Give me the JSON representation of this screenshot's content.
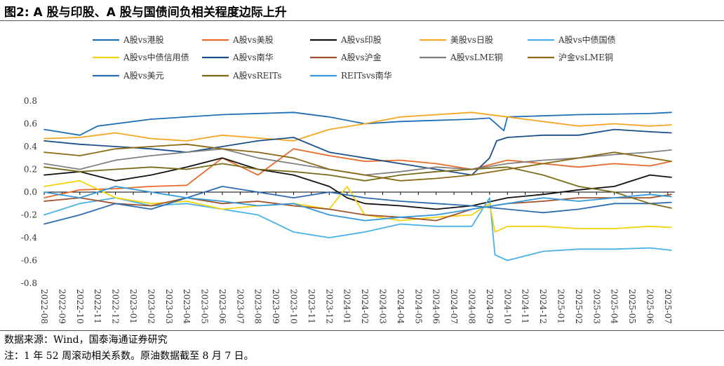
{
  "title": "图2:  A 股与印股、A 股与国债间负相关程度边际上升",
  "source": "数据来源：Wind，国泰海通证券研究",
  "note": "注：1 年 52 周滚动相关系数。原油数据截至 8 月 7 日。",
  "chart_data": {
    "type": "line",
    "title": "",
    "xlabel": "",
    "ylabel": "",
    "ylim": [
      -0.8,
      0.8
    ],
    "yticks": [
      "0.8",
      "0.6",
      "0.4",
      "0.2",
      "0.0",
      "-0.2",
      "-0.4",
      "-0.6",
      "-0.8"
    ],
    "x_labels": [
      "2022-08",
      "2022-09",
      "2022-10",
      "2022-11",
      "2022-12",
      "2023-01",
      "2023-02",
      "2023-03",
      "2023-04",
      "2023-05",
      "2023-06",
      "2023-07",
      "2023-08",
      "2023-09",
      "2023-10",
      "2023-11",
      "2023-12",
      "2024-01",
      "2024-02",
      "2024-03",
      "2024-04",
      "2024-05",
      "2024-06",
      "2024-07",
      "2024-08",
      "2024-09",
      "2024-10",
      "2024-11",
      "2024-12",
      "2025-01",
      "2025-02",
      "2025-03",
      "2025-04",
      "2025-05",
      "2025-06",
      "2025-07"
    ],
    "series": [
      {
        "name": "A股vs港股",
        "color": "#1f6fb4",
        "points": [
          [
            0,
            0.55
          ],
          [
            2,
            0.5
          ],
          [
            3,
            0.58
          ],
          [
            6,
            0.64
          ],
          [
            10,
            0.68
          ],
          [
            14,
            0.7
          ],
          [
            16,
            0.66
          ],
          [
            18,
            0.6
          ],
          [
            20,
            0.62
          ],
          [
            24,
            0.64
          ],
          [
            25,
            0.65
          ],
          [
            25.8,
            0.54
          ],
          [
            26,
            0.66
          ],
          [
            30,
            0.68
          ],
          [
            34,
            0.69
          ],
          [
            35.2,
            0.7
          ]
        ]
      },
      {
        "name": "A股vs美股",
        "color": "#e86a2a",
        "points": [
          [
            0,
            -0.05
          ],
          [
            2,
            0.02
          ],
          [
            4,
            0.03
          ],
          [
            6,
            0.05
          ],
          [
            8,
            0.06
          ],
          [
            10,
            0.3
          ],
          [
            12,
            0.15
          ],
          [
            14,
            0.38
          ],
          [
            16,
            0.32
          ],
          [
            18,
            0.27
          ],
          [
            20,
            0.28
          ],
          [
            22,
            0.25
          ],
          [
            24,
            0.2
          ],
          [
            26,
            0.28
          ],
          [
            28,
            0.25
          ],
          [
            30,
            0.22
          ],
          [
            32,
            0.25
          ],
          [
            34,
            0.23
          ],
          [
            35.2,
            0.27
          ]
        ]
      },
      {
        "name": "A股vs印股",
        "color": "#111111",
        "points": [
          [
            0,
            0.15
          ],
          [
            2,
            0.18
          ],
          [
            4,
            0.1
          ],
          [
            6,
            0.15
          ],
          [
            8,
            0.22
          ],
          [
            10,
            0.3
          ],
          [
            12,
            0.2
          ],
          [
            14,
            0.15
          ],
          [
            16,
            0.05
          ],
          [
            17,
            -0.05
          ],
          [
            18,
            -0.1
          ],
          [
            20,
            -0.12
          ],
          [
            22,
            -0.15
          ],
          [
            24,
            -0.12
          ],
          [
            26,
            -0.05
          ],
          [
            28,
            -0.02
          ],
          [
            30,
            0.02
          ],
          [
            32,
            0.05
          ],
          [
            34,
            0.15
          ],
          [
            35.2,
            0.13
          ]
        ]
      },
      {
        "name": "美股vs日股",
        "color": "#f5a623",
        "points": [
          [
            0,
            0.47
          ],
          [
            2,
            0.48
          ],
          [
            4,
            0.52
          ],
          [
            6,
            0.47
          ],
          [
            8,
            0.45
          ],
          [
            10,
            0.5
          ],
          [
            14,
            0.45
          ],
          [
            16,
            0.55
          ],
          [
            18,
            0.6
          ],
          [
            20,
            0.66
          ],
          [
            22,
            0.68
          ],
          [
            24,
            0.7
          ],
          [
            26,
            0.66
          ],
          [
            28,
            0.62
          ],
          [
            30,
            0.58
          ],
          [
            32,
            0.6
          ],
          [
            34,
            0.58
          ],
          [
            35.2,
            0.59
          ]
        ]
      },
      {
        "name": "A股vs中债国债",
        "color": "#48b2e8",
        "points": [
          [
            0,
            -0.2
          ],
          [
            2,
            -0.1
          ],
          [
            4,
            -0.05
          ],
          [
            6,
            -0.12
          ],
          [
            8,
            -0.1
          ],
          [
            10,
            -0.15
          ],
          [
            12,
            -0.2
          ],
          [
            14,
            -0.35
          ],
          [
            16,
            -0.4
          ],
          [
            18,
            -0.35
          ],
          [
            20,
            -0.28
          ],
          [
            22,
            -0.3
          ],
          [
            24,
            -0.3
          ],
          [
            25,
            -0.05
          ],
          [
            25.3,
            -0.55
          ],
          [
            26,
            -0.6
          ],
          [
            28,
            -0.52
          ],
          [
            30,
            -0.5
          ],
          [
            32,
            -0.5
          ],
          [
            34,
            -0.49
          ],
          [
            35.2,
            -0.51
          ]
        ]
      },
      {
        "name": "A股vs中债信用债",
        "color": "#f4d30c",
        "points": [
          [
            0,
            0.05
          ],
          [
            2,
            0.1
          ],
          [
            4,
            -0.05
          ],
          [
            6,
            -0.1
          ],
          [
            8,
            -0.08
          ],
          [
            10,
            -0.15
          ],
          [
            12,
            -0.12
          ],
          [
            14,
            -0.1
          ],
          [
            16,
            -0.15
          ],
          [
            17,
            0.05
          ],
          [
            18,
            -0.2
          ],
          [
            20,
            -0.25
          ],
          [
            22,
            -0.22
          ],
          [
            24,
            -0.2
          ],
          [
            25,
            -0.1
          ],
          [
            25.3,
            -0.35
          ],
          [
            26,
            -0.3
          ],
          [
            28,
            -0.3
          ],
          [
            30,
            -0.32
          ],
          [
            32,
            -0.32
          ],
          [
            34,
            -0.3
          ],
          [
            35.2,
            -0.31
          ]
        ]
      },
      {
        "name": "A股vs南华",
        "color": "#1b4f8a",
        "points": [
          [
            0,
            0.45
          ],
          [
            2,
            0.42
          ],
          [
            4,
            0.4
          ],
          [
            6,
            0.38
          ],
          [
            8,
            0.35
          ],
          [
            10,
            0.4
          ],
          [
            12,
            0.45
          ],
          [
            14,
            0.48
          ],
          [
            16,
            0.35
          ],
          [
            18,
            0.3
          ],
          [
            20,
            0.25
          ],
          [
            22,
            0.2
          ],
          [
            24,
            0.15
          ],
          [
            25,
            0.3
          ],
          [
            25.4,
            0.45
          ],
          [
            26,
            0.48
          ],
          [
            28,
            0.5
          ],
          [
            30,
            0.5
          ],
          [
            32,
            0.55
          ],
          [
            34,
            0.53
          ],
          [
            35.2,
            0.52
          ]
        ]
      },
      {
        "name": "A股vs沪金",
        "color": "#a0522d",
        "points": [
          [
            0,
            -0.08
          ],
          [
            2,
            -0.05
          ],
          [
            4,
            -0.1
          ],
          [
            6,
            -0.12
          ],
          [
            8,
            -0.05
          ],
          [
            10,
            -0.1
          ],
          [
            12,
            -0.08
          ],
          [
            14,
            -0.12
          ],
          [
            16,
            -0.15
          ],
          [
            18,
            -0.2
          ],
          [
            20,
            -0.22
          ],
          [
            22,
            -0.25
          ],
          [
            24,
            -0.15
          ],
          [
            26,
            -0.1
          ],
          [
            28,
            -0.08
          ],
          [
            30,
            -0.05
          ],
          [
            32,
            -0.05
          ],
          [
            34,
            -0.05
          ],
          [
            35.2,
            -0.02
          ]
        ]
      },
      {
        "name": "A股vsLME铜",
        "color": "#808080",
        "points": [
          [
            0,
            0.25
          ],
          [
            2,
            0.2
          ],
          [
            4,
            0.28
          ],
          [
            6,
            0.32
          ],
          [
            8,
            0.35
          ],
          [
            10,
            0.38
          ],
          [
            12,
            0.3
          ],
          [
            14,
            0.25
          ],
          [
            16,
            0.2
          ],
          [
            18,
            0.15
          ],
          [
            20,
            0.18
          ],
          [
            22,
            0.22
          ],
          [
            24,
            0.2
          ],
          [
            26,
            0.25
          ],
          [
            28,
            0.28
          ],
          [
            30,
            0.3
          ],
          [
            32,
            0.33
          ],
          [
            34,
            0.35
          ],
          [
            35.2,
            0.37
          ]
        ]
      },
      {
        "name": "沪金vsLME铜",
        "color": "#8b6914",
        "points": [
          [
            0,
            0.35
          ],
          [
            2,
            0.32
          ],
          [
            4,
            0.38
          ],
          [
            6,
            0.4
          ],
          [
            8,
            0.42
          ],
          [
            10,
            0.38
          ],
          [
            12,
            0.35
          ],
          [
            14,
            0.3
          ],
          [
            16,
            0.2
          ],
          [
            18,
            0.15
          ],
          [
            20,
            0.1
          ],
          [
            22,
            0.12
          ],
          [
            24,
            0.15
          ],
          [
            26,
            0.2
          ],
          [
            28,
            0.25
          ],
          [
            30,
            0.3
          ],
          [
            32,
            0.35
          ],
          [
            34,
            0.3
          ],
          [
            35.2,
            0.27
          ]
        ]
      },
      {
        "name": "A股vs美元",
        "color": "#2b6cb0",
        "points": [
          [
            0,
            -0.28
          ],
          [
            2,
            -0.2
          ],
          [
            4,
            -0.1
          ],
          [
            6,
            -0.15
          ],
          [
            8,
            -0.05
          ],
          [
            10,
            0.05
          ],
          [
            12,
            0.0
          ],
          [
            14,
            -0.05
          ],
          [
            16,
            0.0
          ],
          [
            18,
            -0.05
          ],
          [
            20,
            -0.08
          ],
          [
            22,
            -0.1
          ],
          [
            24,
            -0.12
          ],
          [
            26,
            -0.15
          ],
          [
            28,
            -0.18
          ],
          [
            30,
            -0.15
          ],
          [
            32,
            -0.1
          ],
          [
            34,
            -0.1
          ],
          [
            35.2,
            -0.09
          ]
        ]
      },
      {
        "name": "A股vsREITs",
        "color": "#7a6b1a",
        "points": [
          [
            0,
            0.22
          ],
          [
            2,
            0.18
          ],
          [
            4,
            0.2
          ],
          [
            6,
            0.22
          ],
          [
            8,
            0.2
          ],
          [
            10,
            0.25
          ],
          [
            12,
            0.2
          ],
          [
            14,
            0.18
          ],
          [
            16,
            0.15
          ],
          [
            18,
            0.1
          ],
          [
            20,
            0.15
          ],
          [
            22,
            0.18
          ],
          [
            24,
            0.2
          ],
          [
            26,
            0.22
          ],
          [
            28,
            0.15
          ],
          [
            30,
            0.05
          ],
          [
            32,
            0.0
          ],
          [
            34,
            -0.1
          ],
          [
            35.2,
            -0.14
          ]
        ]
      },
      {
        "name": "REITsvs南华",
        "color": "#3399dd",
        "points": [
          [
            0,
            0.0
          ],
          [
            2,
            -0.05
          ],
          [
            4,
            0.05
          ],
          [
            6,
            0.0
          ],
          [
            8,
            -0.05
          ],
          [
            10,
            -0.08
          ],
          [
            12,
            -0.12
          ],
          [
            14,
            -0.1
          ],
          [
            16,
            -0.2
          ],
          [
            18,
            -0.25
          ],
          [
            20,
            -0.22
          ],
          [
            22,
            -0.2
          ],
          [
            24,
            -0.15
          ],
          [
            26,
            -0.1
          ],
          [
            28,
            -0.05
          ],
          [
            30,
            -0.08
          ],
          [
            32,
            -0.05
          ],
          [
            34,
            -0.02
          ],
          [
            35.2,
            -0.04
          ]
        ]
      }
    ]
  }
}
